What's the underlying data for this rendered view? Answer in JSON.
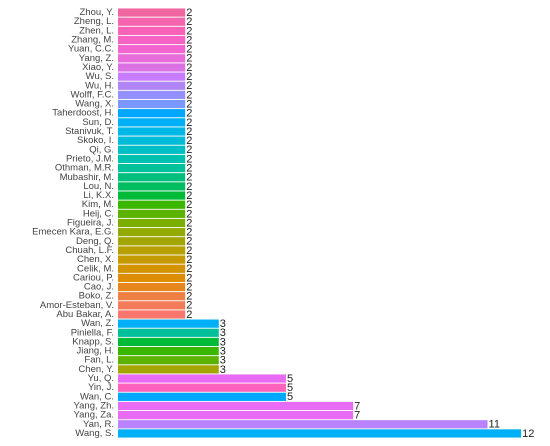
{
  "chart_data": {
    "type": "barh",
    "categories": [
      "Zhou, Y.",
      "Zheng, L.",
      "Zhen, L.",
      "Zhang, M.",
      "Yuan, C.C.",
      "Yang, Z.",
      "Xiao, Y.",
      "Wu, S.",
      "Wu, H.",
      "Wolff, F.C.",
      "Wang, X.",
      "Taherdoost, H.",
      "Sun, D.",
      "Stanivuk, T.",
      "Skoko, I.",
      "Qi, G.",
      "Prieto, J.M.",
      "Othman, M.R.",
      "Mubashir, M.",
      "Lou, N.",
      "Li, K.X.",
      "Kim, M.",
      "Heij, C.",
      "Figueira, J.",
      "Emecen Kara, E.G.",
      "Deng, Q.",
      "Chuah, L.F.",
      "Chen, X.",
      "Celik, M.",
      "Cariou, P.",
      "Cao, J.",
      "Boko, Z.",
      "Amor-Esteban, V.",
      "Abu Bakar, A.",
      "Wan, Z.",
      "Piniella, F.",
      "Knapp, S.",
      "Jiang, H.",
      "Fan, L.",
      "Chen, Y.",
      "Yu, Q.",
      "Yin, J.",
      "Wan, C.",
      "Yang, Zh.",
      "Yang, Za.",
      "Yan, R.",
      "Wang, S."
    ],
    "values": [
      2,
      2,
      2,
      2,
      2,
      2,
      2,
      2,
      2,
      2,
      2,
      2,
      2,
      2,
      2,
      2,
      2,
      2,
      2,
      2,
      2,
      2,
      2,
      2,
      2,
      2,
      2,
      2,
      2,
      2,
      2,
      2,
      2,
      2,
      3,
      3,
      3,
      3,
      3,
      3,
      5,
      5,
      5,
      7,
      7,
      11,
      12
    ],
    "colors": [
      "#F066A0",
      "#F564AE",
      "#F863B8",
      "#F763C4",
      "#F265CF",
      "#E86BDA",
      "#DB72E4",
      "#C77CFF",
      "#B085F5",
      "#9590FF",
      "#7997FF",
      "#00A6FF",
      "#00B0F6",
      "#00B8E7",
      "#00BCD8",
      "#00BFC4",
      "#00C0AF",
      "#00C19A",
      "#00BF7D",
      "#00BD5F",
      "#00BA38",
      "#39B600",
      "#5BB300",
      "#7CAE00",
      "#93AA00",
      "#A3A500",
      "#B79F00",
      "#C49A00",
      "#D39200",
      "#DE8C00",
      "#E7861B",
      "#EE8044",
      "#F37B59",
      "#F8766D",
      "#00B0F6",
      "#00BF9A",
      "#00BA38",
      "#39B600",
      "#5BB300",
      "#A3A500",
      "#E76BF3",
      "#FF62BC",
      "#00A9FF",
      "#E76BF3",
      "#E76BF3",
      "#B983FF",
      "#00B0F6"
    ],
    "xlim": [
      0,
      12.8
    ]
  }
}
